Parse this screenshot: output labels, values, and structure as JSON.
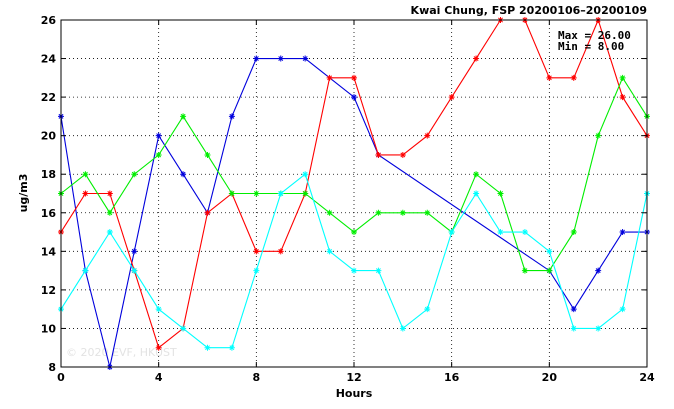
{
  "chart_data": {
    "type": "line",
    "title": "Kwai Chung, FSP 20200106–20200109",
    "xlabel": "Hours",
    "ylabel": "ug/m3",
    "xlim": [
      0,
      24
    ],
    "ylim": [
      8,
      26
    ],
    "xticks": [
      0,
      4,
      8,
      12,
      16,
      20,
      24
    ],
    "yticks": [
      8,
      10,
      12,
      14,
      16,
      18,
      20,
      22,
      24,
      26
    ],
    "grid": true,
    "marker": "asterisk",
    "stats": {
      "max_label": "Max = 26.00",
      "min_label": "Min =  8.00"
    },
    "watermark": "© 2020 EVF, HKUST",
    "series": [
      {
        "color": "#0000dd",
        "points": [
          [
            0,
            21
          ],
          [
            1,
            13
          ],
          [
            2,
            8
          ],
          [
            3,
            14
          ],
          [
            4,
            20
          ],
          [
            5,
            18
          ],
          [
            6,
            16
          ],
          [
            7,
            21
          ],
          [
            8,
            24
          ],
          [
            9,
            24
          ],
          [
            10,
            24
          ],
          [
            12,
            22
          ],
          [
            13,
            19
          ],
          [
            20,
            13
          ],
          [
            21,
            11
          ],
          [
            22,
            13
          ],
          [
            23,
            15
          ],
          [
            24,
            15
          ]
        ]
      },
      {
        "color": "#ff0000",
        "points": [
          [
            0,
            15
          ],
          [
            1,
            17
          ],
          [
            2,
            17
          ],
          [
            3,
            13
          ],
          [
            4,
            9
          ],
          [
            5,
            10
          ],
          [
            6,
            16
          ],
          [
            7,
            17
          ],
          [
            8,
            14
          ],
          [
            9,
            14
          ],
          [
            10,
            17
          ],
          [
            11,
            23
          ],
          [
            12,
            23
          ],
          [
            13,
            19
          ],
          [
            14,
            19
          ],
          [
            15,
            20
          ],
          [
            16,
            22
          ],
          [
            17,
            24
          ],
          [
            18,
            26
          ],
          [
            19,
            26
          ],
          [
            20,
            23
          ],
          [
            21,
            23
          ],
          [
            22,
            26
          ],
          [
            23,
            22
          ],
          [
            24,
            20
          ]
        ]
      },
      {
        "color": "#00ee00",
        "points": [
          [
            0,
            17
          ],
          [
            1,
            18
          ],
          [
            2,
            16
          ],
          [
            3,
            18
          ],
          [
            4,
            19
          ],
          [
            5,
            21
          ],
          [
            6,
            19
          ],
          [
            7,
            17
          ],
          [
            8,
            17
          ],
          [
            9,
            17
          ],
          [
            10,
            17
          ],
          [
            11,
            16
          ],
          [
            12,
            15
          ],
          [
            13,
            16
          ],
          [
            14,
            16
          ],
          [
            15,
            16
          ],
          [
            16,
            15
          ],
          [
            17,
            18
          ],
          [
            18,
            17
          ],
          [
            19,
            13
          ],
          [
            20,
            13
          ],
          [
            21,
            15
          ],
          [
            22,
            20
          ],
          [
            23,
            23
          ],
          [
            24,
            21
          ]
        ]
      },
      {
        "color": "#00ffff",
        "points": [
          [
            0,
            11
          ],
          [
            1,
            13
          ],
          [
            2,
            15
          ],
          [
            3,
            13
          ],
          [
            4,
            11
          ],
          [
            5,
            10
          ],
          [
            6,
            9
          ],
          [
            7,
            9
          ],
          [
            8,
            13
          ],
          [
            9,
            17
          ],
          [
            10,
            18
          ],
          [
            11,
            14
          ],
          [
            12,
            13
          ],
          [
            13,
            13
          ],
          [
            14,
            10
          ],
          [
            15,
            11
          ],
          [
            16,
            15
          ],
          [
            17,
            17
          ],
          [
            18,
            15
          ],
          [
            19,
            15
          ],
          [
            20,
            14
          ],
          [
            21,
            10
          ],
          [
            22,
            10
          ],
          [
            23,
            11
          ],
          [
            24,
            17
          ]
        ]
      }
    ]
  }
}
